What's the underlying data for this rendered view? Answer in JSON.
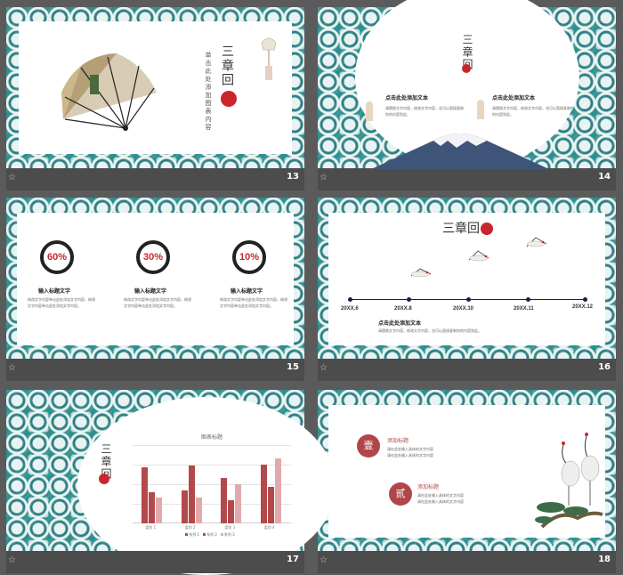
{
  "thumb_marker": "☆",
  "slides": [
    {
      "number": "13",
      "title": "三章回",
      "subtitle": "单击此处添加图表内容"
    },
    {
      "number": "14",
      "title": "三章回",
      "items": [
        {
          "heading": "点击此处添加文本",
          "body": "请替换文字内容，修改文字内容，也可以直接复制你的内容到此。"
        },
        {
          "heading": "点击此处添加文本",
          "body": "请替换文字内容，修改文字内容，也可以直接复制你的内容到此。"
        }
      ]
    },
    {
      "number": "15",
      "stats": [
        {
          "value": "60%",
          "label": "输入标题文字",
          "body": "修改文字内容单击此处添加文字内容，修改文字内容单击此处添加文字内容。"
        },
        {
          "value": "30%",
          "label": "输入标题文字",
          "body": "修改文字内容单击此处添加文字内容，修改文字内容单击此处添加文字内容。"
        },
        {
          "value": "10%",
          "label": "输入标题文字",
          "body": "修改文字内容单击此处添加文字内容，修改文字内容单击此处添加文字内容。"
        }
      ]
    },
    {
      "number": "16",
      "title": "三章回",
      "dates": [
        "20XX.6",
        "20XX.8",
        "20XX.10",
        "20XX.11",
        "20XX.12"
      ],
      "heading": "点击此处添加文本",
      "body": "请替换文字内容，修改文字内容，也可以直接复制你的内容到此。"
    },
    {
      "number": "17",
      "title": "三章回"
    },
    {
      "number": "18",
      "items": [
        {
          "badge": "壹",
          "heading": "添加标题",
          "lines": [
            "请在此处输入具体的文字内容",
            "请在此处输入具体的文字内容"
          ]
        },
        {
          "badge": "贰",
          "heading": "添加标题",
          "lines": [
            "请在此处输入具体的文字内容",
            "请在此处输入具体的文字内容"
          ]
        }
      ]
    }
  ],
  "colors": {
    "accent": "#c8262b",
    "teal": "#2c7f84",
    "bar_dark": "#b3494a",
    "bar_light": "#e2a9ab"
  },
  "chart_data": {
    "type": "bar",
    "title": "图表标题",
    "categories": [
      "类别 1",
      "类别 2",
      "类别 3",
      "类别 4"
    ],
    "series": [
      {
        "name": "系列 1",
        "values": [
          4.3,
          2.5,
          3.5,
          4.5
        ]
      },
      {
        "name": "系列 2",
        "values": [
          2.4,
          4.4,
          1.8,
          2.8
        ]
      },
      {
        "name": "系列 3",
        "values": [
          2,
          2,
          3,
          5
        ]
      }
    ],
    "ylim": [
      0,
      6
    ],
    "grid": true,
    "legend": "bottom"
  }
}
